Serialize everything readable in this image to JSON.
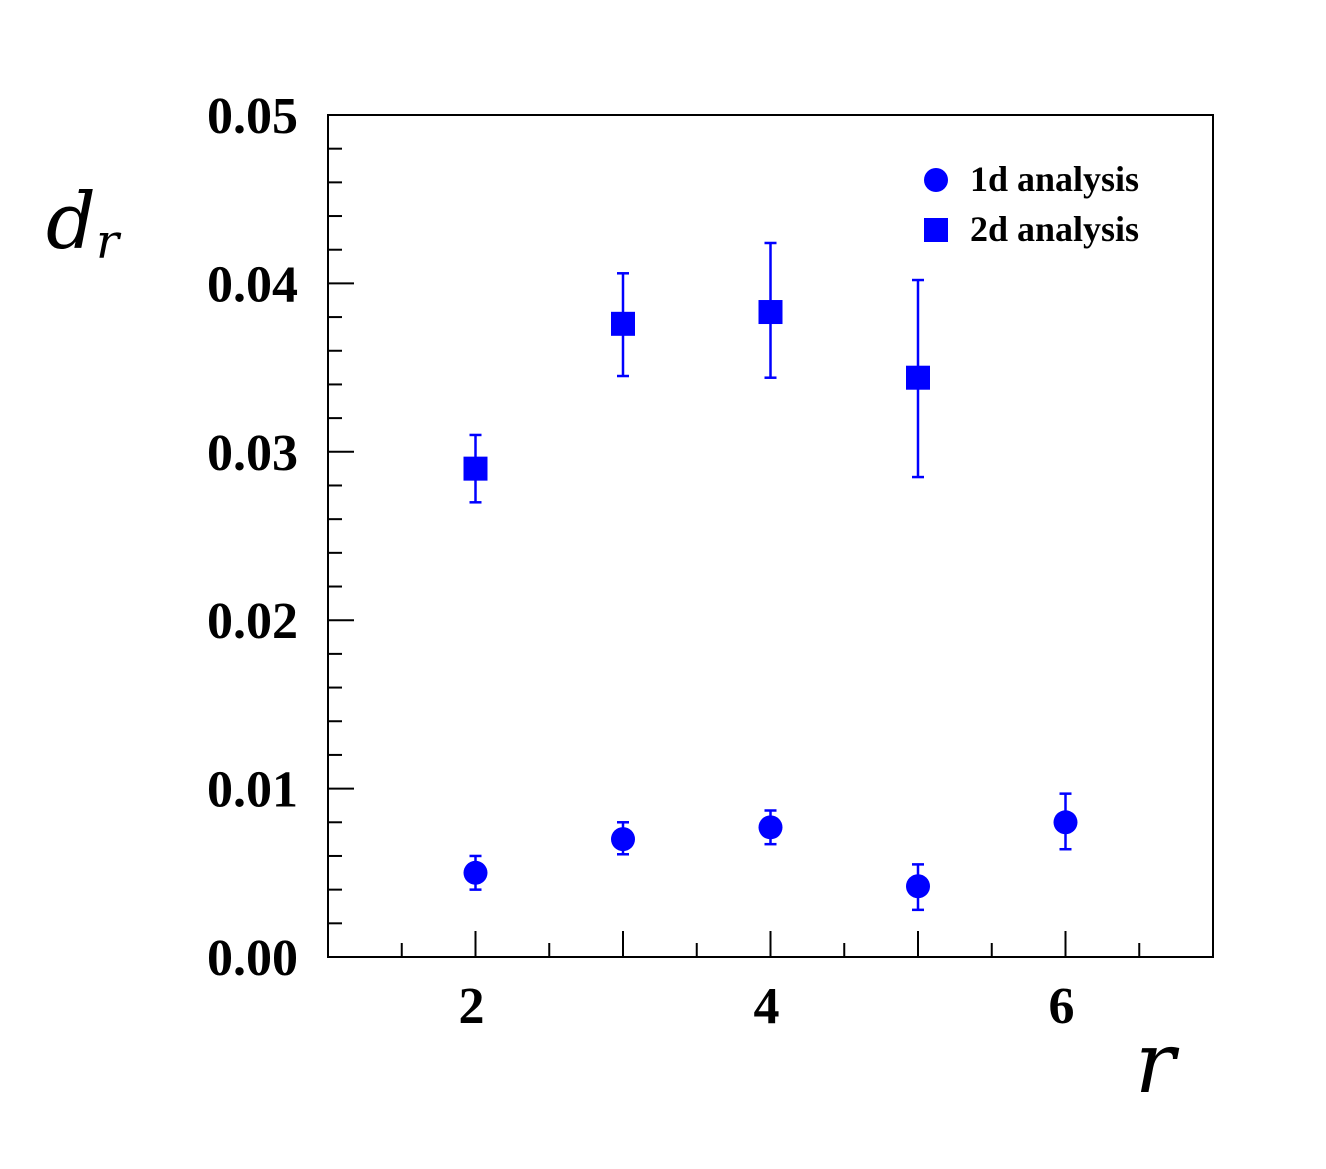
{
  "chart_data": {
    "type": "scatter",
    "title": "",
    "xlabel": "r",
    "ylabel": "d",
    "ylabel_sub": "r",
    "xlim": [
      1,
      7
    ],
    "ylim": [
      0,
      0.05
    ],
    "x_ticks": [
      {
        "value": 2,
        "label": "2"
      },
      {
        "value": 4,
        "label": "4"
      },
      {
        "value": 6,
        "label": "6"
      }
    ],
    "x_minor_step": 0.5,
    "y_ticks": [
      {
        "value": 0.0,
        "label": "0.00"
      },
      {
        "value": 0.01,
        "label": "0.01"
      },
      {
        "value": 0.02,
        "label": "0.02"
      },
      {
        "value": 0.03,
        "label": "0.03"
      },
      {
        "value": 0.04,
        "label": "0.04"
      },
      {
        "value": 0.05,
        "label": "0.05"
      }
    ],
    "y_minor_step": 0.002,
    "grid": false,
    "legend_position": "top-right",
    "series": [
      {
        "name": "1d analysis",
        "marker": "circle",
        "color": "#0000ff",
        "points": [
          {
            "x": 2,
            "y": 0.005,
            "err_low": 0.001,
            "err_high": 0.001
          },
          {
            "x": 3,
            "y": 0.007,
            "err_low": 0.0009,
            "err_high": 0.001
          },
          {
            "x": 4,
            "y": 0.0077,
            "err_low": 0.001,
            "err_high": 0.001
          },
          {
            "x": 5,
            "y": 0.0042,
            "err_low": 0.0014,
            "err_high": 0.0013
          },
          {
            "x": 6,
            "y": 0.008,
            "err_low": 0.0016,
            "err_high": 0.0017
          }
        ]
      },
      {
        "name": "2d analysis",
        "marker": "square",
        "color": "#0000ff",
        "points": [
          {
            "x": 2,
            "y": 0.029,
            "err_low": 0.002,
            "err_high": 0.002
          },
          {
            "x": 3,
            "y": 0.0376,
            "err_low": 0.0031,
            "err_high": 0.003
          },
          {
            "x": 4,
            "y": 0.0383,
            "err_low": 0.0039,
            "err_high": 0.0041
          },
          {
            "x": 5,
            "y": 0.0344,
            "err_low": 0.0059,
            "err_high": 0.0058
          }
        ]
      }
    ]
  }
}
